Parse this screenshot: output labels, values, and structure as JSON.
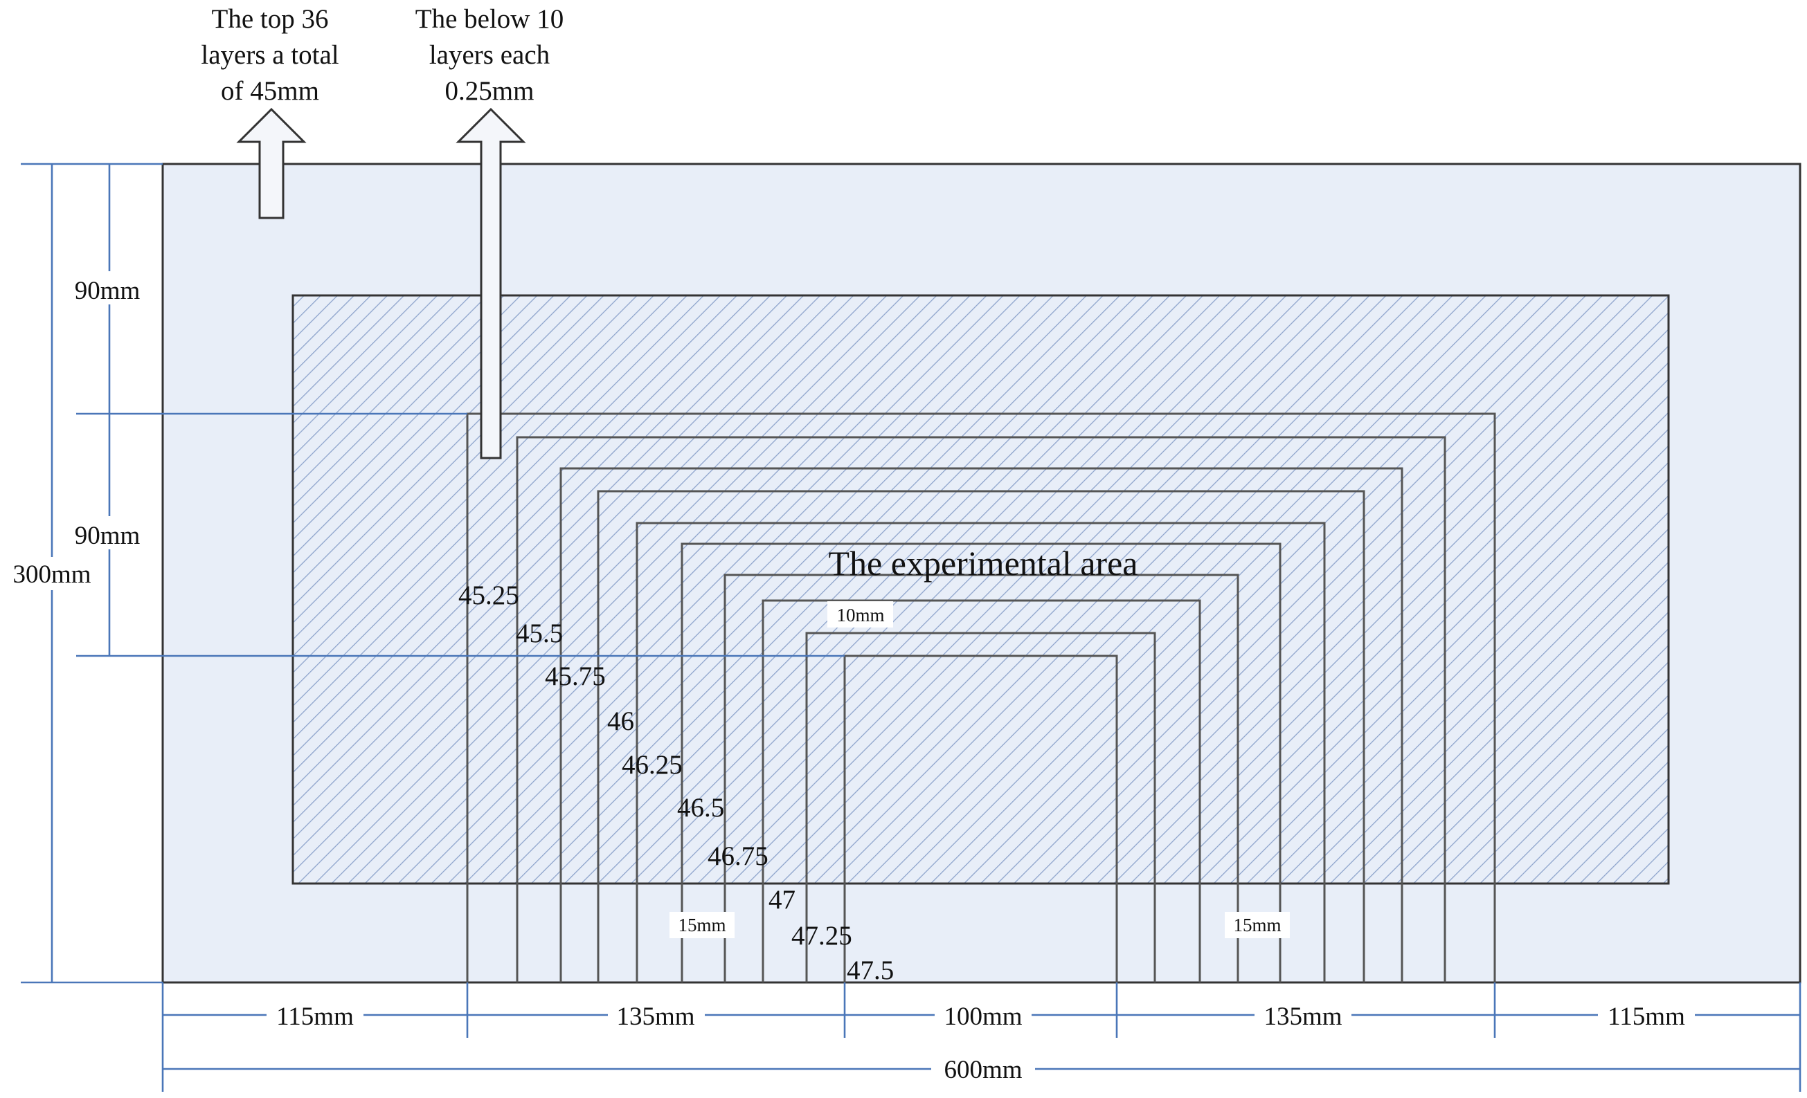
{
  "annotations": {
    "top_layers_line1": "The top 36",
    "top_layers_line2": "layers a total",
    "top_layers_line3": "of 45mm",
    "below_layers_line1": "The below 10",
    "below_layers_line2": "layers each",
    "below_layers_line3": "0.25mm"
  },
  "area_label": "The experimental area",
  "vertical_dims": {
    "upper": "90mm",
    "middle": "90mm",
    "total": "300mm"
  },
  "horizontal_dims": {
    "seg1": "115mm",
    "seg2": "135mm",
    "seg3": "100mm",
    "seg4": "135mm",
    "seg5": "115mm",
    "total": "600mm"
  },
  "small_dims": {
    "left_width": "15mm",
    "right_width": "15mm",
    "step": "10mm"
  },
  "layer_values": [
    "45.25",
    "45.5",
    "45.75",
    "46",
    "46.25",
    "46.5",
    "46.75",
    "47",
    "47.25",
    "47.5"
  ],
  "colors": {
    "background": "#e8eef8",
    "hatch": "#8ea4cc",
    "line": "#333333",
    "dimension": "#4a76b8"
  }
}
